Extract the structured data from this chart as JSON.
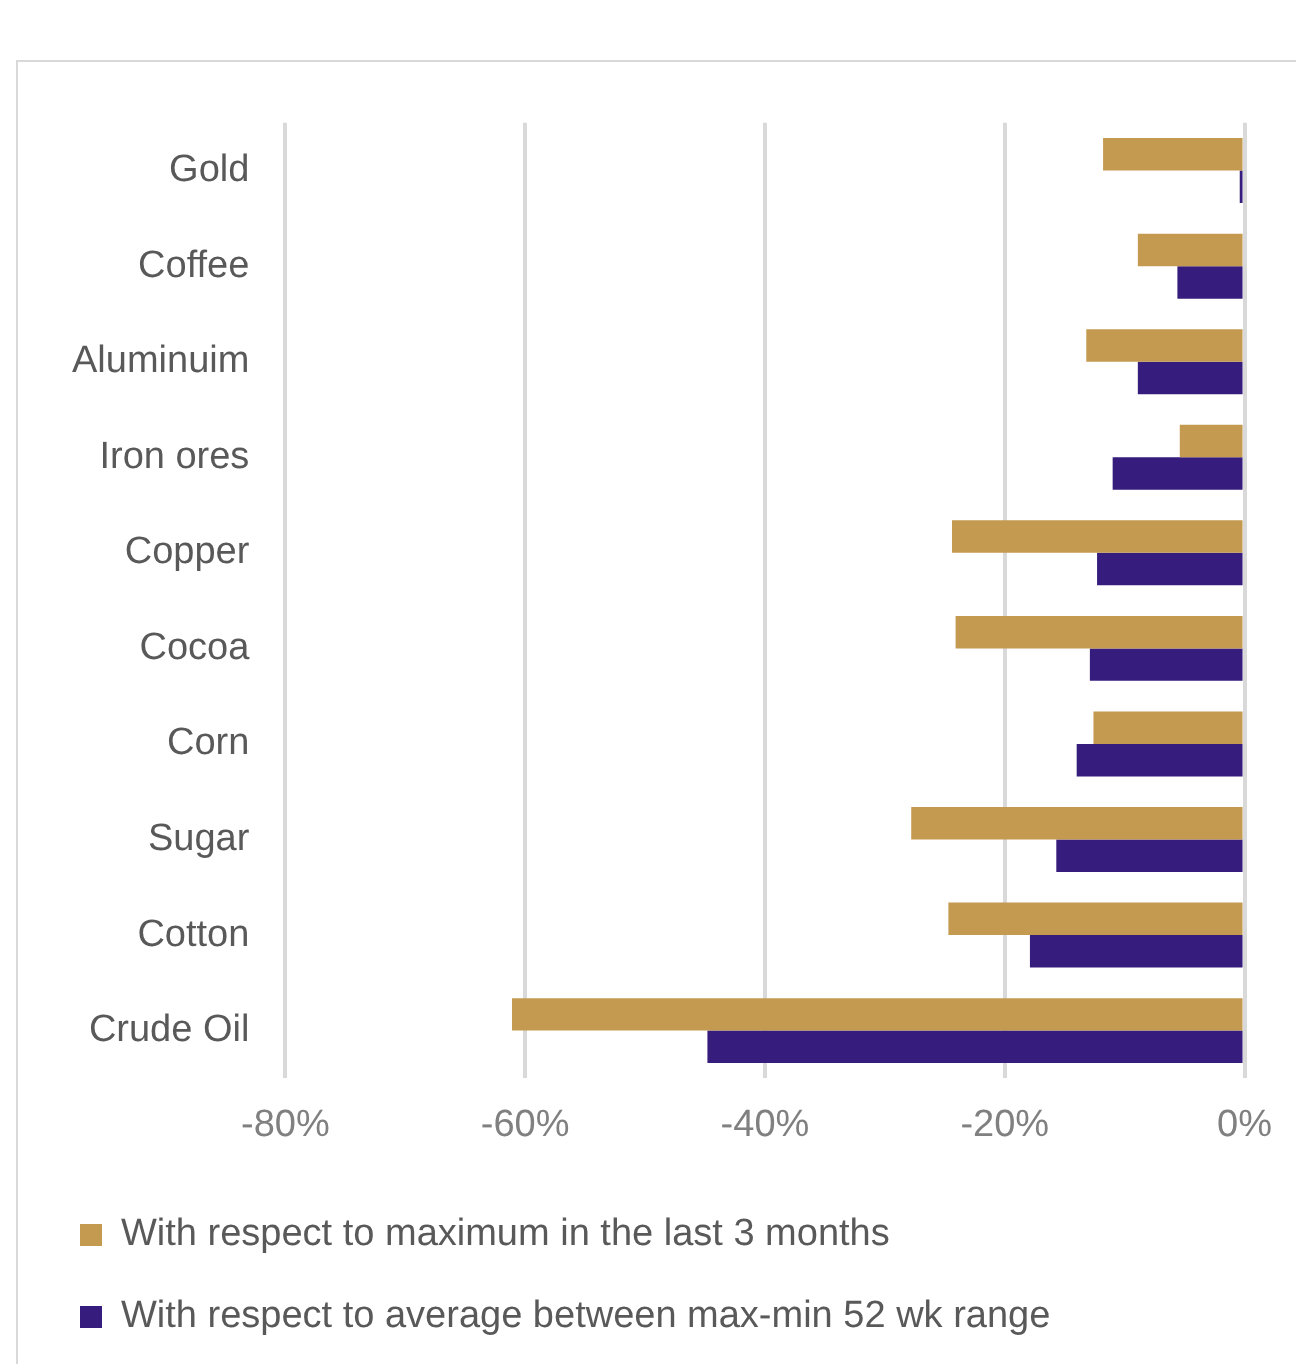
{
  "chart_data": {
    "type": "bar",
    "orientation": "horizontal",
    "categories": [
      "Gold",
      "Coffee",
      "Aluminuim",
      "Iron ores",
      "Copper",
      "Cocoa",
      "Corn",
      "Sugar",
      "Cotton",
      "Crude Oil"
    ],
    "series": [
      {
        "name": "With respect to maximum in the last 3 months",
        "color": "#c49a50",
        "values": [
          -11.8,
          -8.9,
          -13.2,
          -5.4,
          -24.4,
          -24.1,
          -12.6,
          -27.8,
          -24.7,
          -61.1
        ]
      },
      {
        "name": "With respect to average between max-min 52 wk range",
        "color": "#361c7c",
        "values": [
          -0.4,
          -5.6,
          -8.9,
          -11.0,
          -12.3,
          -12.9,
          -14.0,
          -15.7,
          -17.9,
          -44.8
        ]
      }
    ],
    "xlim": [
      -80,
      0
    ],
    "xticks": [
      {
        "value": -80,
        "label": "-80%"
      },
      {
        "value": -60,
        "label": "-60%"
      },
      {
        "value": -40,
        "label": "-40%"
      },
      {
        "value": -20,
        "label": "-20%"
      },
      {
        "value": 0,
        "label": "0%"
      }
    ],
    "grid": "x",
    "legend": "bottom"
  }
}
